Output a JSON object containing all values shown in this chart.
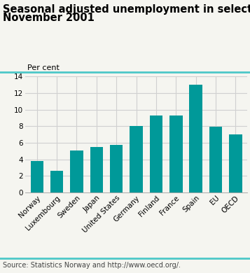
{
  "title_line1": "Seasonal adjusted unemployment in selected countries,",
  "title_line2": "November 2001",
  "ylabel": "Per cent",
  "source": "Source: Statistics Norway and http://www.oecd.org/.",
  "categories": [
    "Norway",
    "Luxembourg",
    "Sweden",
    "Japan",
    "United States",
    "Germany",
    "Finland",
    "France",
    "Spain",
    "EU",
    "OECD"
  ],
  "values": [
    3.8,
    2.6,
    5.1,
    5.5,
    5.7,
    8.0,
    9.3,
    9.3,
    13.0,
    7.9,
    7.0
  ],
  "bar_color": "#009999",
  "background_color": "#f5f5f0",
  "ylim": [
    0,
    14
  ],
  "yticks": [
    0,
    2,
    4,
    6,
    8,
    10,
    12,
    14
  ],
  "grid_color": "#d0d0d0",
  "title_fontsize": 10.5,
  "tick_fontsize": 7.5,
  "ylabel_fontsize": 8.0,
  "source_fontsize": 7.0,
  "bar_width": 0.65,
  "teal_line_color": "#4dc8c8"
}
